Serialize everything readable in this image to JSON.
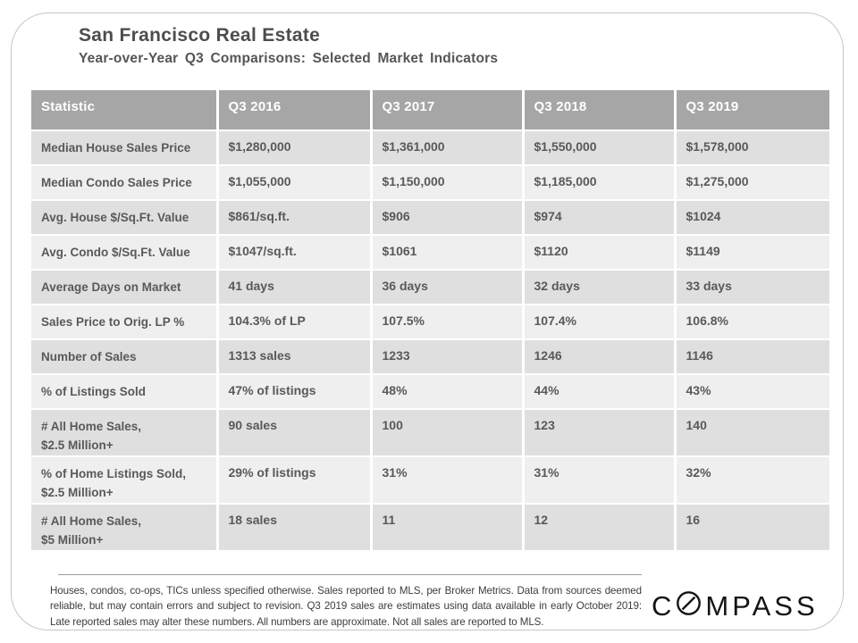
{
  "header": {
    "title": "San Francisco Real Estate",
    "subtitle": "Year-over-Year Q3 Comparisons: Selected Market Indicators"
  },
  "table": {
    "columns": [
      "Statistic",
      "Q3 2016",
      "Q3 2017",
      "Q3 2018",
      "Q3 2019"
    ],
    "rows": [
      {
        "label": "Median House Sales Price",
        "values": [
          "$1,280,000",
          "$1,361,000",
          "$1,550,000",
          "$1,578,000"
        ]
      },
      {
        "label": "Median Condo Sales Price",
        "values": [
          "$1,055,000",
          "$1,150,000",
          "$1,185,000",
          "$1,275,000"
        ]
      },
      {
        "label": "Avg. House $/Sq.Ft. Value",
        "values": [
          "$861/sq.ft.",
          "$906",
          "$974",
          "$1024"
        ]
      },
      {
        "label": "Avg. Condo $/Sq.Ft. Value",
        "values": [
          "$1047/sq.ft.",
          "$1061",
          "$1120",
          "$1149"
        ]
      },
      {
        "label": "Average Days on Market",
        "values": [
          "41 days",
          "36 days",
          "32 days",
          "33 days"
        ]
      },
      {
        "label": "Sales Price to Orig. LP %",
        "values": [
          "104.3% of LP",
          "107.5%",
          "107.4%",
          "106.8%"
        ]
      },
      {
        "label": "Number of Sales",
        "values": [
          "1313 sales",
          "1233",
          "1246",
          "1146"
        ]
      },
      {
        "label": "% of Listings Sold",
        "values": [
          "47% of listings",
          "48%",
          "44%",
          "43%"
        ]
      },
      {
        "label": "# All Home Sales,\n$2.5 Million+",
        "values": [
          "90 sales",
          "100",
          "123",
          "140"
        ]
      },
      {
        "label": "% of Home Listings Sold,\n$2.5 Million+",
        "values": [
          "29% of listings",
          "31%",
          "31%",
          "32%"
        ]
      },
      {
        "label": "# All Home Sales,\n$5 Million+",
        "values": [
          "18 sales",
          "11",
          "12",
          "16"
        ]
      }
    ]
  },
  "footer": {
    "disclaimer": "Houses, condos, co-ops, TICs unless specified otherwise. Sales reported to MLS, per Broker Metrics. Data from sources deemed reliable, but may contain errors and subject to revision. Q3 2019 sales are estimates using data available in early October 2019: Late reported sales may alter these numbers. All numbers are approximate. Not all sales are reported to MLS.",
    "logo_prefix": "C",
    "logo_suffix": "MPASS"
  },
  "colors": {
    "header_bg": "#a6a6a6",
    "row_dark": "#dfdfdf",
    "row_light": "#efefef",
    "cell_text": "#595959",
    "title_text": "#4d4d4d"
  }
}
